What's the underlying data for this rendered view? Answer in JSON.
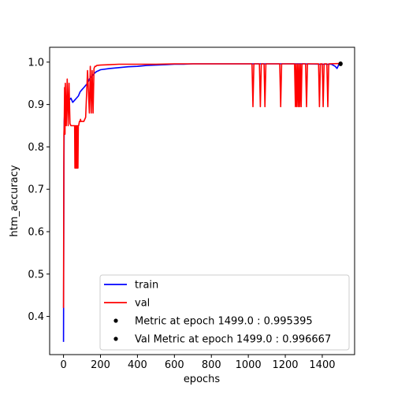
{
  "chart_data": {
    "type": "line",
    "title": "",
    "xlabel": "epochs",
    "ylabel": "htm_accuracy",
    "xlim": [
      -75,
      1575
    ],
    "ylim": [
      0.31,
      1.035
    ],
    "xticks": [
      0,
      200,
      400,
      600,
      800,
      1000,
      1200,
      1400
    ],
    "xtick_labels": [
      "0",
      "200",
      "400",
      "600",
      "800",
      "1000",
      "1200",
      "1400"
    ],
    "yticks": [
      0.4,
      0.5,
      0.6,
      0.7,
      0.8,
      0.9,
      1.0
    ],
    "ytick_labels": [
      "0.4",
      "0.5",
      "0.6",
      "0.7",
      "0.8",
      "0.9",
      "1.0"
    ],
    "grid": false,
    "legend_position": "lower-right",
    "series": [
      {
        "name": "train",
        "color": "#0000ff",
        "x": [
          0,
          2,
          4,
          6,
          10,
          20,
          30,
          40,
          50,
          60,
          70,
          80,
          90,
          100,
          110,
          120,
          130,
          140,
          150,
          160,
          170,
          180,
          190,
          200,
          250,
          300,
          350,
          400,
          450,
          500,
          550,
          600,
          650,
          700,
          800,
          900,
          1000,
          1100,
          1200,
          1300,
          1400,
          1450,
          1470,
          1480,
          1490,
          1499
        ],
        "y": [
          0.34,
          0.75,
          0.86,
          0.88,
          0.895,
          0.9,
          0.91,
          0.915,
          0.905,
          0.91,
          0.915,
          0.92,
          0.93,
          0.935,
          0.94,
          0.945,
          0.95,
          0.96,
          0.965,
          0.97,
          0.975,
          0.978,
          0.98,
          0.982,
          0.985,
          0.987,
          0.989,
          0.99,
          0.992,
          0.993,
          0.994,
          0.995,
          0.995,
          0.996,
          0.996,
          0.996,
          0.996,
          0.996,
          0.996,
          0.996,
          0.995,
          0.995,
          0.99,
          0.985,
          0.995,
          0.995395
        ]
      },
      {
        "name": "val",
        "color": "#ff0000",
        "x": [
          0,
          2,
          4,
          6,
          8,
          10,
          15,
          20,
          25,
          30,
          35,
          40,
          45,
          50,
          55,
          60,
          62,
          64,
          66,
          68,
          70,
          72,
          74,
          76,
          78,
          80,
          82,
          84,
          86,
          88,
          90,
          92,
          94,
          96,
          100,
          110,
          120,
          130,
          140,
          145,
          150,
          155,
          160,
          165,
          170,
          175,
          180,
          200,
          250,
          300,
          400,
          500,
          600,
          700,
          800,
          900,
          1000,
          1020,
          1025,
          1030,
          1060,
          1065,
          1070,
          1085,
          1090,
          1095,
          1170,
          1175,
          1180,
          1250,
          1255,
          1258,
          1262,
          1266,
          1270,
          1274,
          1278,
          1282,
          1286,
          1290,
          1295,
          1310,
          1315,
          1320,
          1380,
          1385,
          1390,
          1400,
          1405,
          1410,
          1425,
          1430,
          1435,
          1499
        ],
        "y": [
          0.42,
          0.83,
          0.85,
          0.94,
          0.83,
          0.95,
          0.85,
          0.96,
          0.85,
          0.95,
          0.855,
          0.85,
          0.85,
          0.85,
          0.85,
          0.85,
          0.75,
          0.85,
          0.75,
          0.85,
          0.75,
          0.85,
          0.75,
          0.85,
          0.75,
          0.85,
          0.85,
          0.855,
          0.86,
          0.86,
          0.86,
          0.865,
          0.86,
          0.86,
          0.86,
          0.86,
          0.87,
          0.98,
          0.88,
          0.99,
          0.88,
          0.98,
          0.88,
          0.985,
          0.99,
          0.99,
          0.992,
          0.993,
          0.994,
          0.995,
          0.995,
          0.995,
          0.996,
          0.996,
          0.996,
          0.996,
          0.996,
          0.996,
          0.895,
          0.996,
          0.996,
          0.895,
          0.996,
          0.996,
          0.895,
          0.996,
          0.996,
          0.895,
          0.996,
          0.996,
          0.895,
          0.996,
          0.895,
          0.996,
          0.895,
          0.996,
          0.895,
          0.996,
          0.895,
          0.996,
          0.996,
          0.996,
          0.895,
          0.996,
          0.996,
          0.895,
          0.996,
          0.996,
          0.895,
          0.996,
          0.996,
          0.895,
          0.996,
          0.996667
        ]
      }
    ],
    "markers": [
      {
        "name": "Metric at epoch 1499.0 : 0.995395",
        "x": 1499,
        "y": 0.995395,
        "color": "#000000"
      },
      {
        "name": "Val Metric at epoch 1499.0 : 0.996667",
        "x": 1499,
        "y": 0.996667,
        "color": "#000000"
      }
    ],
    "legend": [
      {
        "label": "train",
        "kind": "line",
        "color": "#0000ff"
      },
      {
        "label": "val",
        "kind": "line",
        "color": "#ff0000"
      },
      {
        "label": "Metric at epoch 1499.0 : 0.995395",
        "kind": "dot",
        "color": "#000000"
      },
      {
        "label": "Val Metric at epoch 1499.0 : 0.996667",
        "kind": "dot",
        "color": "#000000"
      }
    ]
  }
}
